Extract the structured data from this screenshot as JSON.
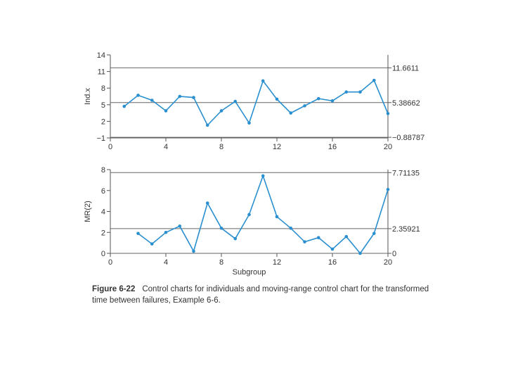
{
  "chart_data": [
    {
      "type": "line",
      "ylabel": "Ind.x",
      "xlabel": "",
      "xlim": [
        0,
        20
      ],
      "ylim": [
        -1,
        14
      ],
      "xticks": [
        "0",
        "4",
        "8",
        "12",
        "16",
        "20"
      ],
      "yticks": [
        "−1",
        "2",
        "5",
        "8",
        "11",
        "14"
      ],
      "limits": [
        {
          "name": "UCL",
          "label": "11.6611",
          "value": 11.6611
        },
        {
          "name": "CL",
          "label": "5.38662",
          "value": 5.38662
        },
        {
          "name": "LCL",
          "label": "−0.88787",
          "value": -0.88787
        }
      ],
      "series": [
        {
          "x": [
            1,
            2,
            3,
            4,
            5,
            6,
            7,
            8,
            9,
            10,
            11,
            12,
            13,
            14,
            15,
            16,
            17,
            18,
            19,
            20
          ],
          "values": [
            4.7,
            6.7,
            5.8,
            3.9,
            6.5,
            6.3,
            1.3,
            3.9,
            5.6,
            1.7,
            9.3,
            6.0,
            3.5,
            4.8,
            6.1,
            5.7,
            7.3,
            7.3,
            9.4,
            3.4
          ]
        }
      ],
      "color": "#2a8fcf"
    },
    {
      "type": "line",
      "ylabel": "MR(2)",
      "xlabel": "Subgroup",
      "xlim": [
        0,
        20
      ],
      "ylim": [
        0,
        8
      ],
      "xticks": [
        "0",
        "4",
        "8",
        "12",
        "16",
        "20"
      ],
      "yticks": [
        "0",
        "2",
        "4",
        "6",
        "8"
      ],
      "limits": [
        {
          "name": "UCL",
          "label": "7.71135",
          "value": 7.71135
        },
        {
          "name": "CL",
          "label": "2.35921",
          "value": 2.35921
        },
        {
          "name": "LCL",
          "label": "0",
          "value": 0
        }
      ],
      "series": [
        {
          "x": [
            2,
            3,
            4,
            5,
            6,
            7,
            8,
            9,
            10,
            11,
            12,
            13,
            14,
            15,
            16,
            17,
            18,
            19,
            20
          ],
          "values": [
            1.9,
            0.9,
            2.0,
            2.6,
            0.2,
            4.8,
            2.4,
            1.4,
            3.7,
            7.4,
            3.5,
            2.4,
            1.1,
            1.5,
            0.4,
            1.6,
            0.0,
            1.9,
            6.1
          ]
        }
      ],
      "color": "#2a8fcf"
    }
  ],
  "caption": {
    "figure_label": "Figure 6-22",
    "text": "Control charts for individuals and moving-range control chart for the transformed time between failures, Example 6-6."
  }
}
